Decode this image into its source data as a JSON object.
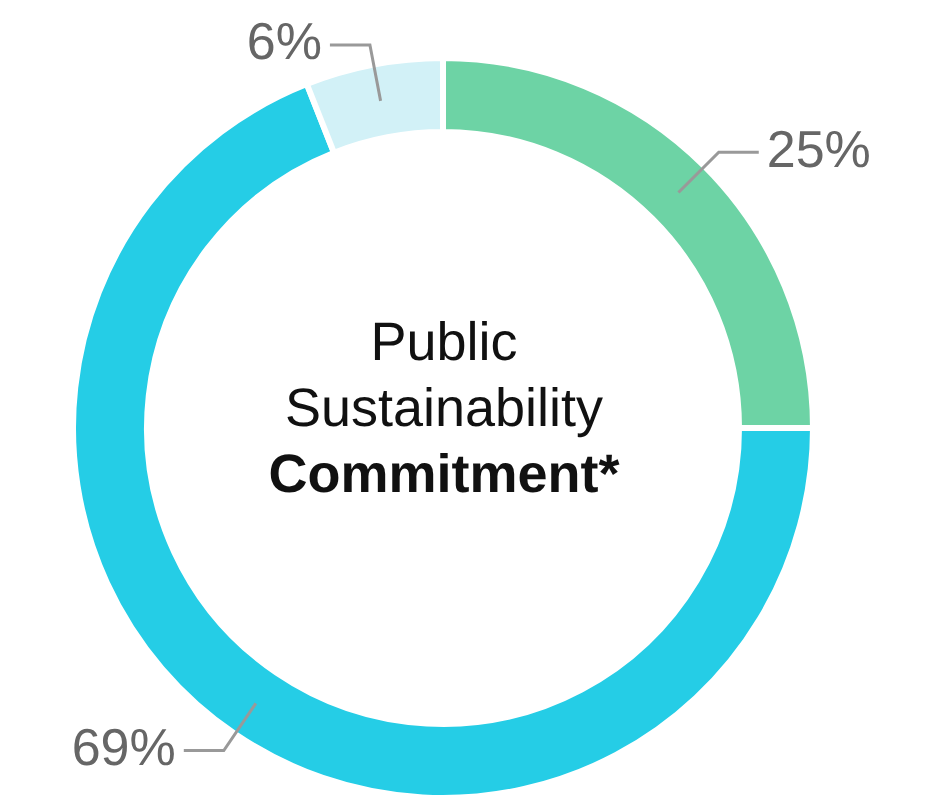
{
  "chart_data": {
    "type": "donut",
    "title": "Public Sustainability",
    "subtitle": "Commitment*",
    "categories": [
      null,
      null,
      null
    ],
    "values": [
      25,
      69,
      6
    ],
    "colors": [
      "#6dd3a5",
      "#25cde6",
      "#d2f1f7"
    ],
    "value_labels": [
      "25%",
      "69%",
      "6%"
    ],
    "legend": false
  }
}
